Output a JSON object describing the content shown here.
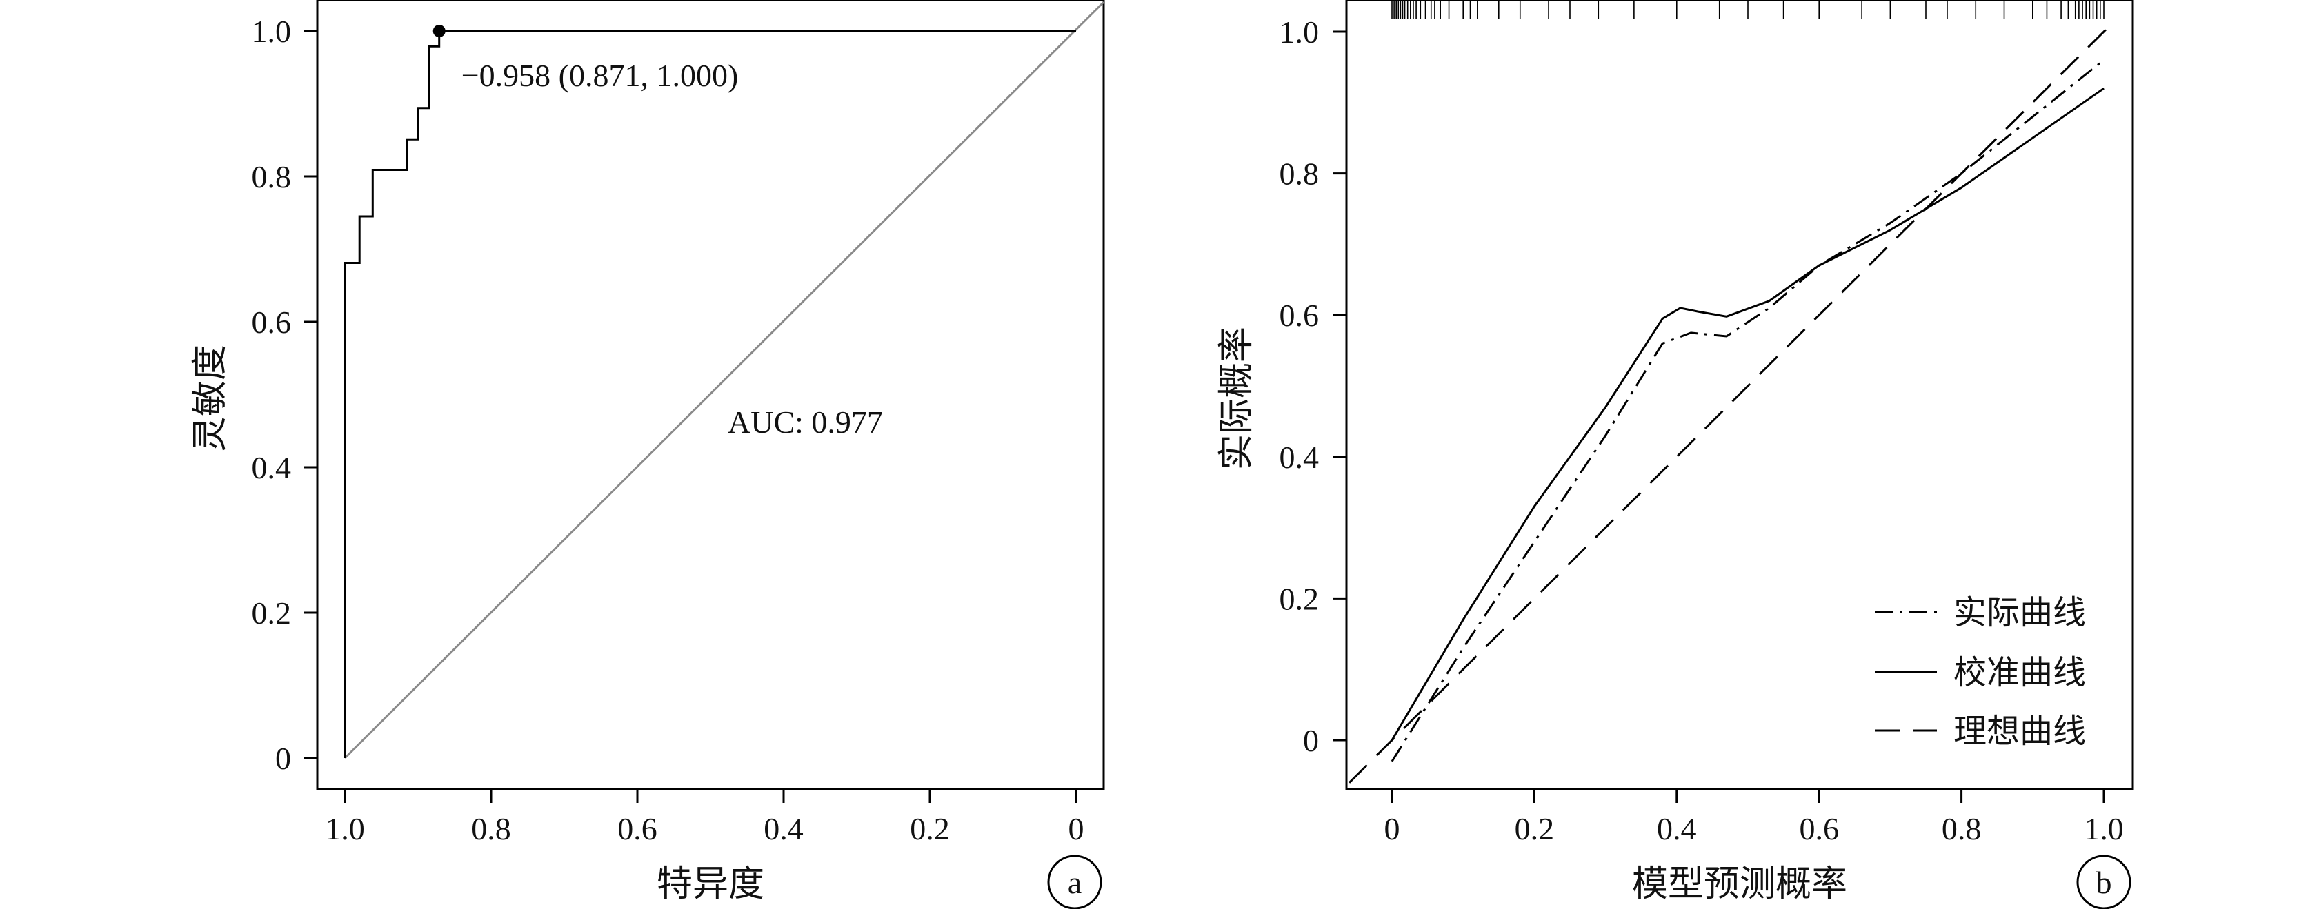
{
  "chart_data": [
    {
      "type": "line",
      "panel_label": "a",
      "xlabel": "特异度",
      "ylabel": "灵敏度",
      "x_reversed": true,
      "xlim": [
        1.0,
        0
      ],
      "ylim": [
        0,
        1.0
      ],
      "x_ticks": [
        "1.0",
        "0.8",
        "0.6",
        "0.4",
        "0.2",
        "0"
      ],
      "y_ticks": [
        "0",
        "0.2",
        "0.4",
        "0.6",
        "0.8",
        "1.0"
      ],
      "grid": false,
      "series": [
        {
          "points": [
            [
              1.0,
              0.0
            ],
            [
              1.0,
              0.681
            ],
            [
              0.98,
              0.681
            ],
            [
              0.98,
              0.745
            ],
            [
              0.962,
              0.745
            ],
            [
              0.962,
              0.809
            ],
            [
              0.915,
              0.809
            ],
            [
              0.915,
              0.851
            ],
            [
              0.9,
              0.851
            ],
            [
              0.9,
              0.894
            ],
            [
              0.885,
              0.894
            ],
            [
              0.885,
              0.979
            ],
            [
              0.871,
              0.979
            ],
            [
              0.871,
              1.0
            ],
            [
              0.0,
              1.0
            ]
          ]
        }
      ],
      "reference_line": [
        [
          1.0,
          0.0
        ],
        [
          0.0,
          1.0
        ]
      ],
      "cutoff_point": {
        "x": 0.871,
        "y": 1.0,
        "label": "−0.958 (0.871, 1.000)"
      },
      "annotation": "AUC: 0.977"
    },
    {
      "type": "line",
      "panel_label": "b",
      "xlabel": "模型预测概率",
      "ylabel": "实际概率",
      "xlim": [
        0,
        1.0
      ],
      "ylim": [
        0,
        1.0
      ],
      "x_ticks": [
        "0",
        "0.2",
        "0.4",
        "0.6",
        "0.8",
        "1.0"
      ],
      "y_ticks": [
        "0",
        "0.2",
        "0.4",
        "0.6",
        "0.8",
        "1.0"
      ],
      "grid": false,
      "legend_position": "bottom-right",
      "series": [
        {
          "name": "实际曲线",
          "style": "dash-dot",
          "points": [
            [
              0.0,
              -0.03
            ],
            [
              0.1,
              0.13
            ],
            [
              0.2,
              0.28
            ],
            [
              0.3,
              0.43
            ],
            [
              0.38,
              0.56
            ],
            [
              0.42,
              0.575
            ],
            [
              0.47,
              0.57
            ],
            [
              0.53,
              0.61
            ],
            [
              0.6,
              0.67
            ],
            [
              0.7,
              0.73
            ],
            [
              0.8,
              0.8
            ],
            [
              0.9,
              0.88
            ],
            [
              1.0,
              0.96
            ]
          ]
        },
        {
          "name": "校准曲线",
          "style": "solid",
          "points": [
            [
              0.0,
              0.0
            ],
            [
              0.1,
              0.17
            ],
            [
              0.2,
              0.33
            ],
            [
              0.3,
              0.47
            ],
            [
              0.38,
              0.595
            ],
            [
              0.405,
              0.61
            ],
            [
              0.43,
              0.605
            ],
            [
              0.47,
              0.598
            ],
            [
              0.53,
              0.62
            ],
            [
              0.6,
              0.67
            ],
            [
              0.7,
              0.72
            ],
            [
              0.8,
              0.78
            ],
            [
              0.9,
              0.85
            ],
            [
              1.0,
              0.92
            ]
          ]
        },
        {
          "name": "理想曲线",
          "style": "dashed",
          "points": [
            [
              -0.06,
              -0.06
            ],
            [
              1.0,
              1.0
            ]
          ]
        }
      ],
      "rug_x": [
        0.0,
        0.003,
        0.006,
        0.009,
        0.012,
        0.015,
        0.018,
        0.022,
        0.026,
        0.03,
        0.034,
        0.04,
        0.047,
        0.055,
        0.06,
        0.068,
        0.08,
        0.1,
        0.11,
        0.12,
        0.15,
        0.18,
        0.22,
        0.25,
        0.29,
        0.34,
        0.4,
        0.46,
        0.5,
        0.55,
        0.6,
        0.66,
        0.7,
        0.75,
        0.78,
        0.82,
        0.86,
        0.9,
        0.92,
        0.94,
        0.95,
        0.96,
        0.965,
        0.97,
        0.975,
        0.98,
        0.985,
        0.99,
        0.995,
        1.0
      ]
    }
  ]
}
